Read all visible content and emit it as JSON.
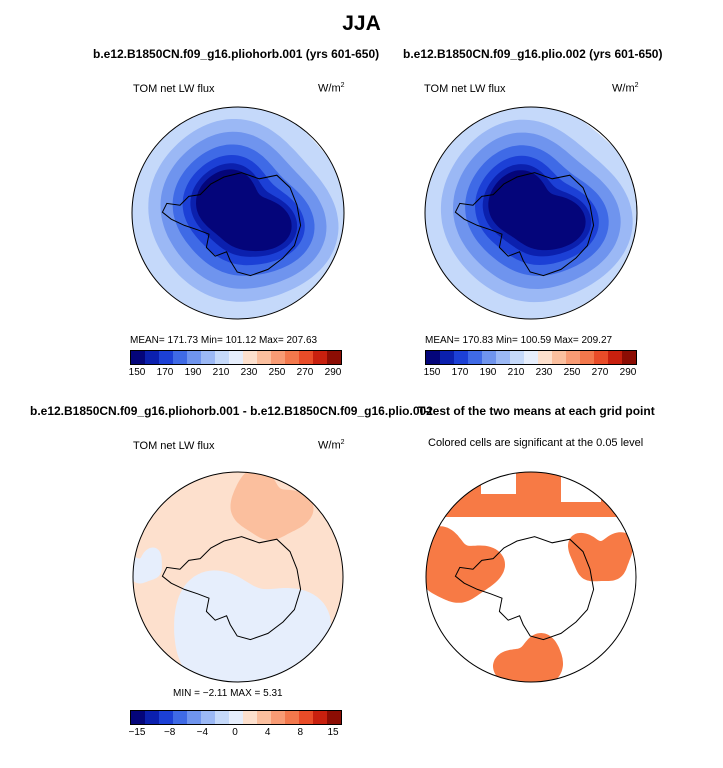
{
  "figure": {
    "title": "JJA",
    "panels": [
      {
        "title": "b.e12.B1850CN.f09_g16.pliohorb.001 (yrs 601-650)",
        "variable": "TOM net LW flux",
        "units": "W/m",
        "units_sup": "2",
        "stats": "MEAN= 171.73   Min= 101.12   Max= 207.63"
      },
      {
        "title": "b.e12.B1850CN.f09_g16.plio.002 (yrs 601-650)",
        "variable": "TOM net LW flux",
        "units": "W/m",
        "units_sup": "2",
        "stats": "MEAN= 170.83   Min= 100.59   Max= 209.27"
      },
      {
        "title": "b.e12.B1850CN.f09_g16.pliohorb.001 - b.e12.B1850CN.f09_g16.plio.002",
        "variable": "TOM net LW flux",
        "units": "W/m",
        "units_sup": "2",
        "stats": "MIN =  −2.11  MAX =   5.31"
      },
      {
        "title": "T-test of the two means at each grid point",
        "subtitle": "Colored cells are significant at the 0.05 level"
      }
    ],
    "colorbar_abs": {
      "colors": [
        "#04057a",
        "#0b20ae",
        "#1c40d6",
        "#3f6ae6",
        "#6f94ee",
        "#9bb8f5",
        "#c5d9fa",
        "#e6eefc",
        "#fde0cd",
        "#fbbf9e",
        "#f89b74",
        "#f3784c",
        "#e94c28",
        "#c8200e",
        "#8c0d04"
      ],
      "tick_labels": [
        "150",
        "170",
        "190",
        "210",
        "230",
        "250",
        "270",
        "290"
      ]
    },
    "colorbar_diff": {
      "colors": [
        "#04057a",
        "#0b20ae",
        "#1c40d6",
        "#3f6ae6",
        "#6f94ee",
        "#9bb8f5",
        "#c5d9fa",
        "#e6eefc",
        "#fde0cd",
        "#fbbf9e",
        "#f89b74",
        "#f3784c",
        "#e94c28",
        "#c8200e",
        "#8c0d04"
      ],
      "tick_labels": [
        "−15",
        "−8",
        "−4",
        "0",
        "4",
        "8",
        "15"
      ]
    }
  },
  "chart_data": [
    {
      "type": "heatmap",
      "title": "b.e12.B1850CN.f09_g16.pliohorb.001 (yrs 601-650)",
      "variable": "TOM net LW flux",
      "units": "W/m2",
      "season": "JJA",
      "projection": "south polar stereographic",
      "mean": 171.73,
      "min": 101.12,
      "max": 207.63,
      "colorbar_levels": [
        150,
        160,
        170,
        180,
        190,
        200,
        210,
        220,
        230,
        240,
        250,
        260,
        270,
        280,
        290
      ]
    },
    {
      "type": "heatmap",
      "title": "b.e12.B1850CN.f09_g16.plio.002 (yrs 601-650)",
      "variable": "TOM net LW flux",
      "units": "W/m2",
      "season": "JJA",
      "projection": "south polar stereographic",
      "mean": 170.83,
      "min": 100.59,
      "max": 209.27,
      "colorbar_levels": [
        150,
        160,
        170,
        180,
        190,
        200,
        210,
        220,
        230,
        240,
        250,
        260,
        270,
        280,
        290
      ]
    },
    {
      "type": "heatmap",
      "title": "b.e12.B1850CN.f09_g16.pliohorb.001 - b.e12.B1850CN.f09_g16.plio.002",
      "variable": "TOM net LW flux",
      "units": "W/m2",
      "projection": "south polar stereographic",
      "min": -2.11,
      "max": 5.31,
      "colorbar_levels": [
        -15,
        -10,
        -8,
        -6,
        -4,
        -2,
        -1,
        0,
        1,
        2,
        4,
        6,
        8,
        10,
        15
      ]
    },
    {
      "type": "heatmap",
      "title": "T-test of the two means at each grid point",
      "subtitle": "Colored cells are significant at the 0.05 level",
      "projection": "south polar stereographic",
      "significance_level": 0.05,
      "significant_color": "#f77a45"
    }
  ]
}
